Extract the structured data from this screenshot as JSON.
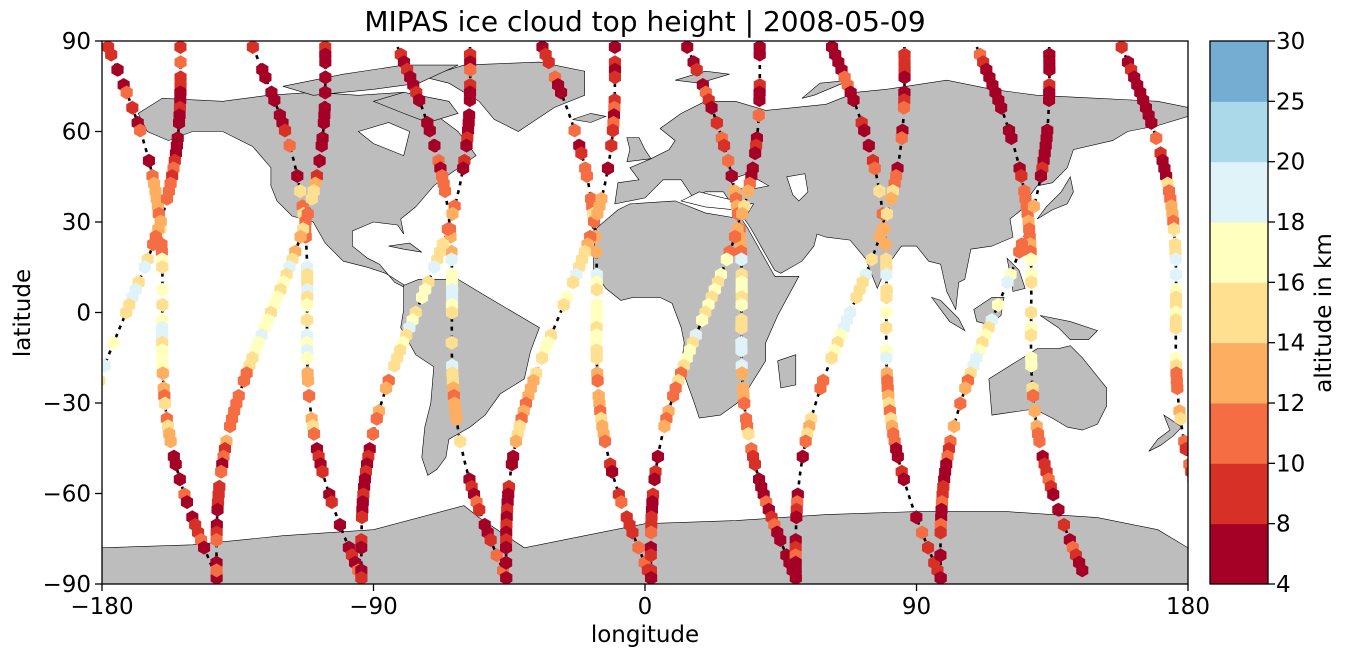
{
  "chart_data": {
    "type": "scatter",
    "title": "MIPAS ice cloud top height | 2008-05-09",
    "xlabel": "longitude",
    "ylabel": "latitude",
    "xlim": [
      -180,
      180
    ],
    "ylim": [
      -90,
      90
    ],
    "xticks": [
      "−180",
      "−90",
      "0",
      "90",
      "180"
    ],
    "xtick_values": [
      -180,
      -90,
      0,
      90,
      180
    ],
    "yticks": [
      "90",
      "60",
      "30",
      "0",
      "−30",
      "−60",
      "−90"
    ],
    "ytick_values": [
      90,
      60,
      30,
      0,
      -30,
      -60,
      -90
    ],
    "colorbar": {
      "label": "altitude in km",
      "boundaries": [
        4,
        8,
        10,
        12,
        14,
        16,
        18,
        20,
        25,
        30
      ],
      "tick_labels": [
        "4",
        "8",
        "10",
        "12",
        "14",
        "16",
        "18",
        "20",
        "25",
        "30"
      ],
      "colors": [
        "#a50026",
        "#d73027",
        "#f46d43",
        "#fdae61",
        "#fee090",
        "#ffffbf",
        "#e0f3f8",
        "#abd9e9",
        "#74add1",
        "#313695"
      ]
    },
    "basemap": {
      "land_color": "#bdbdbd",
      "coast_color": "#000000"
    },
    "orbit_tracks": [
      {
        "lon0": -178,
        "drift": 36
      },
      {
        "lon0": -154,
        "drift": 36
      },
      {
        "lon0": -130,
        "drift": 36
      },
      {
        "lon0": -106,
        "drift": 36
      },
      {
        "lon0": -82,
        "drift": 36
      },
      {
        "lon0": -58,
        "drift": 36
      },
      {
        "lon0": -34,
        "drift": 36
      },
      {
        "lon0": -10,
        "drift": 36
      },
      {
        "lon0": 14,
        "drift": 36
      },
      {
        "lon0": 38,
        "drift": 36
      },
      {
        "lon0": 62,
        "drift": 36
      },
      {
        "lon0": 86,
        "drift": 36
      },
      {
        "lon0": 110,
        "drift": 36
      },
      {
        "lon0": 134,
        "drift": 36
      },
      {
        "lon0": 158,
        "drift": 36
      }
    ]
  }
}
